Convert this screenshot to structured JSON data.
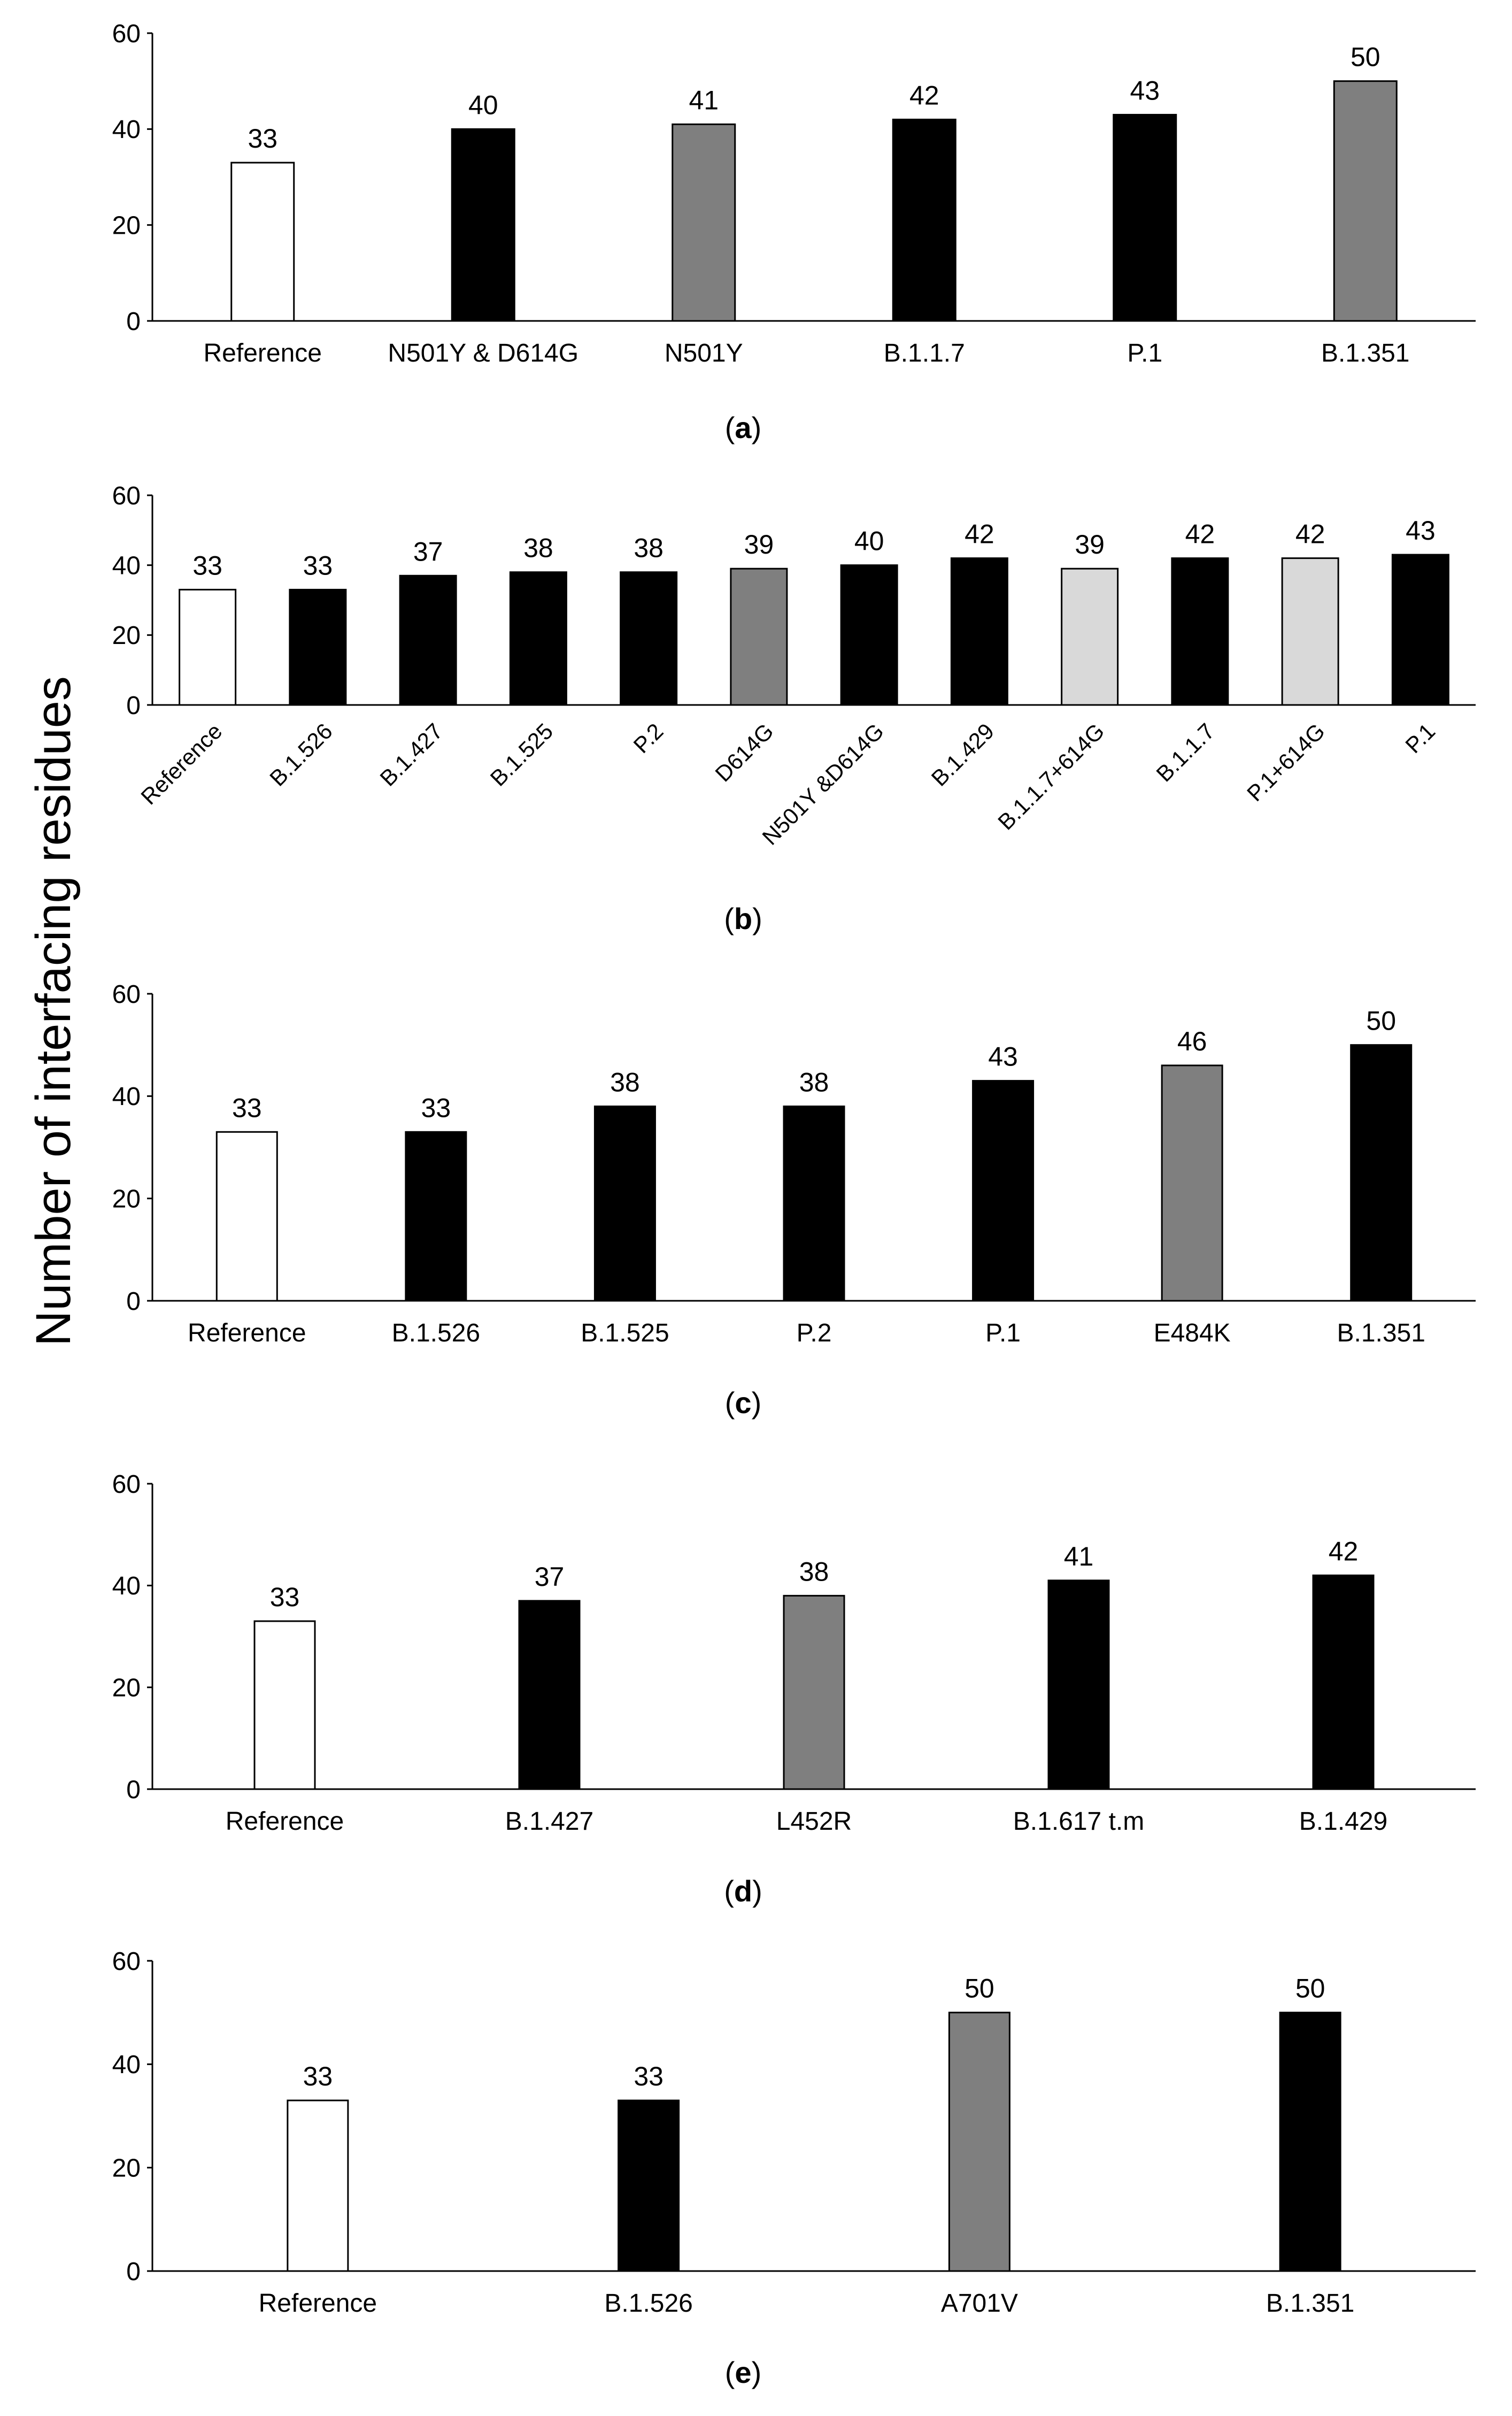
{
  "figure": {
    "y_axis_title": "Number of interfacing residues"
  },
  "colors": {
    "white": "#ffffff",
    "black": "#000000",
    "gray": "#7f7f7f",
    "light_gray": "#d9d9d9"
  },
  "chart_data": [
    {
      "type": "bar",
      "panel": "a",
      "categories": [
        "Reference",
        "N501Y & D614G",
        "N501Y",
        "B.1.1.7",
        "P.1",
        "B.1.351"
      ],
      "values": [
        33,
        40,
        41,
        42,
        43,
        50
      ],
      "data_labels": [
        "33",
        "40",
        "41",
        "42",
        "43",
        "50"
      ],
      "bar_fills": [
        "white",
        "black",
        "gray",
        "black",
        "black",
        "gray"
      ],
      "ylim": [
        0,
        60
      ],
      "yticks": [
        0,
        20,
        40,
        60
      ],
      "ytick_labels": [
        "0",
        "20",
        "40",
        "60"
      ],
      "ylabel": "Number of interfacing residues",
      "xlabel": ""
    },
    {
      "type": "bar",
      "panel": "b",
      "categories": [
        "Reference",
        "B.1.526",
        "B.1.427",
        "B.1.525",
        "P.2",
        "D614G",
        "N501Y &D614G",
        "B.1.429",
        "B.1.1.7+614G",
        "B.1.1.7",
        "P.1+614G",
        "P.1"
      ],
      "values": [
        33,
        33,
        37,
        38,
        38,
        39,
        40,
        42,
        39,
        42,
        42,
        43
      ],
      "data_labels": [
        "33",
        "33",
        "37",
        "38",
        "38",
        "39",
        "40",
        "42",
        "39",
        "42",
        "42",
        "43"
      ],
      "bar_fills": [
        "white",
        "black",
        "black",
        "black",
        "black",
        "gray",
        "black",
        "black",
        "light_gray",
        "black",
        "light_gray",
        "black"
      ],
      "ylim": [
        0,
        60
      ],
      "yticks": [
        0,
        20,
        40,
        60
      ],
      "ytick_labels": [
        "0",
        "20",
        "40",
        "60"
      ],
      "ylabel": "Number of interfacing residues",
      "xlabel": ""
    },
    {
      "type": "bar",
      "panel": "c",
      "categories": [
        "Reference",
        "B.1.526",
        "B.1.525",
        "P.2",
        "P.1",
        "E484K",
        "B.1.351"
      ],
      "values": [
        33,
        33,
        38,
        38,
        43,
        46,
        50
      ],
      "data_labels": [
        "33",
        "33",
        "38",
        "38",
        "43",
        "46",
        "50"
      ],
      "bar_fills": [
        "white",
        "black",
        "black",
        "black",
        "black",
        "gray",
        "black"
      ],
      "ylim": [
        0,
        60
      ],
      "yticks": [
        0,
        20,
        40,
        60
      ],
      "ytick_labels": [
        "0",
        "20",
        "40",
        "60"
      ],
      "ylabel": "Number of interfacing residues",
      "xlabel": ""
    },
    {
      "type": "bar",
      "panel": "d",
      "categories": [
        "Reference",
        "B.1.427",
        "L452R",
        "B.1.617 t.m",
        "B.1.429"
      ],
      "values": [
        33,
        37,
        38,
        41,
        42
      ],
      "data_labels": [
        "33",
        "37",
        "38",
        "41",
        "42"
      ],
      "bar_fills": [
        "white",
        "black",
        "gray",
        "black",
        "black"
      ],
      "ylim": [
        0,
        60
      ],
      "yticks": [
        0,
        20,
        40,
        60
      ],
      "ytick_labels": [
        "0",
        "20",
        "40",
        "60"
      ],
      "ylabel": "Number of interfacing residues",
      "xlabel": ""
    },
    {
      "type": "bar",
      "panel": "e",
      "categories": [
        "Reference",
        "B.1.526",
        "A701V",
        "B.1.351"
      ],
      "values": [
        33,
        33,
        50,
        50
      ],
      "data_labels": [
        "33",
        "33",
        "50",
        "50"
      ],
      "bar_fills": [
        "white",
        "black",
        "gray",
        "black"
      ],
      "ylim": [
        0,
        60
      ],
      "yticks": [
        0,
        20,
        40,
        60
      ],
      "ytick_labels": [
        "0",
        "20",
        "40",
        "60"
      ],
      "ylabel": "Number of interfacing residues",
      "xlabel": ""
    }
  ]
}
